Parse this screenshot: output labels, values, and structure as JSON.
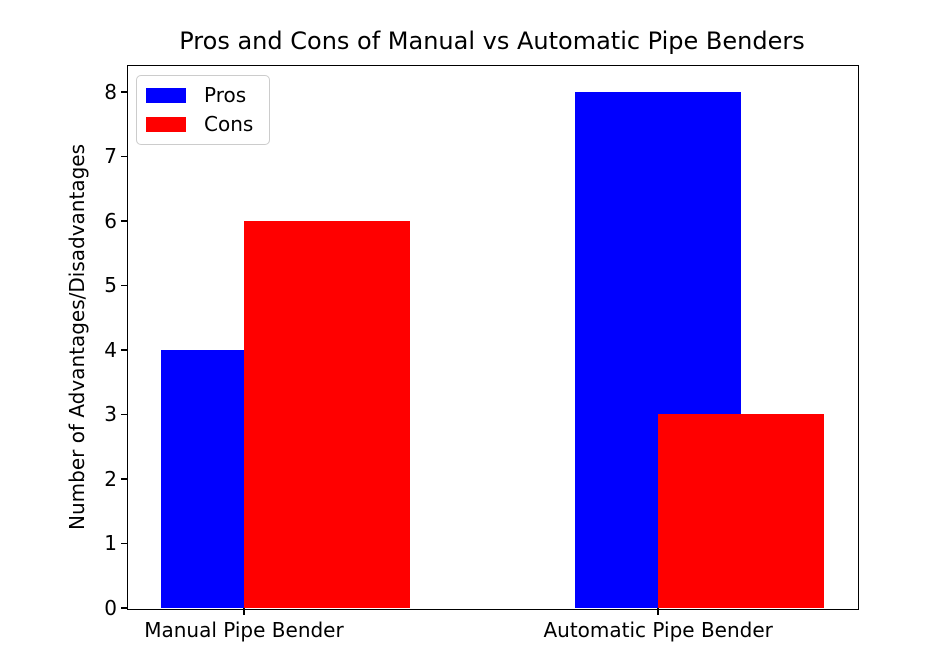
{
  "chart_data": {
    "type": "bar",
    "title": "Pros and Cons of Manual vs Automatic Pipe Benders",
    "xlabel": "",
    "ylabel": "Number of Advantages/Disadvantages",
    "categories": [
      "Manual Pipe Bender",
      "Automatic Pipe Bender"
    ],
    "x_positions": [
      0,
      1
    ],
    "series": [
      {
        "name": "Pros",
        "color": "#0000ff",
        "values": [
          4,
          8
        ],
        "offset": 0.0
      },
      {
        "name": "Cons",
        "color": "#ff0000",
        "values": [
          6,
          3
        ],
        "offset": 0.2
      }
    ],
    "bar_width": 0.4,
    "ylim": [
      0,
      8.4
    ],
    "yticks": [
      0,
      1,
      2,
      3,
      4,
      5,
      6,
      7,
      8
    ],
    "xlim": [
      -0.28,
      1.48
    ],
    "grid": false,
    "legend": {
      "position": "upper left",
      "entries": [
        "Pros",
        "Cons"
      ]
    },
    "background_color": "#ffffff",
    "spine_color": "#000000"
  }
}
